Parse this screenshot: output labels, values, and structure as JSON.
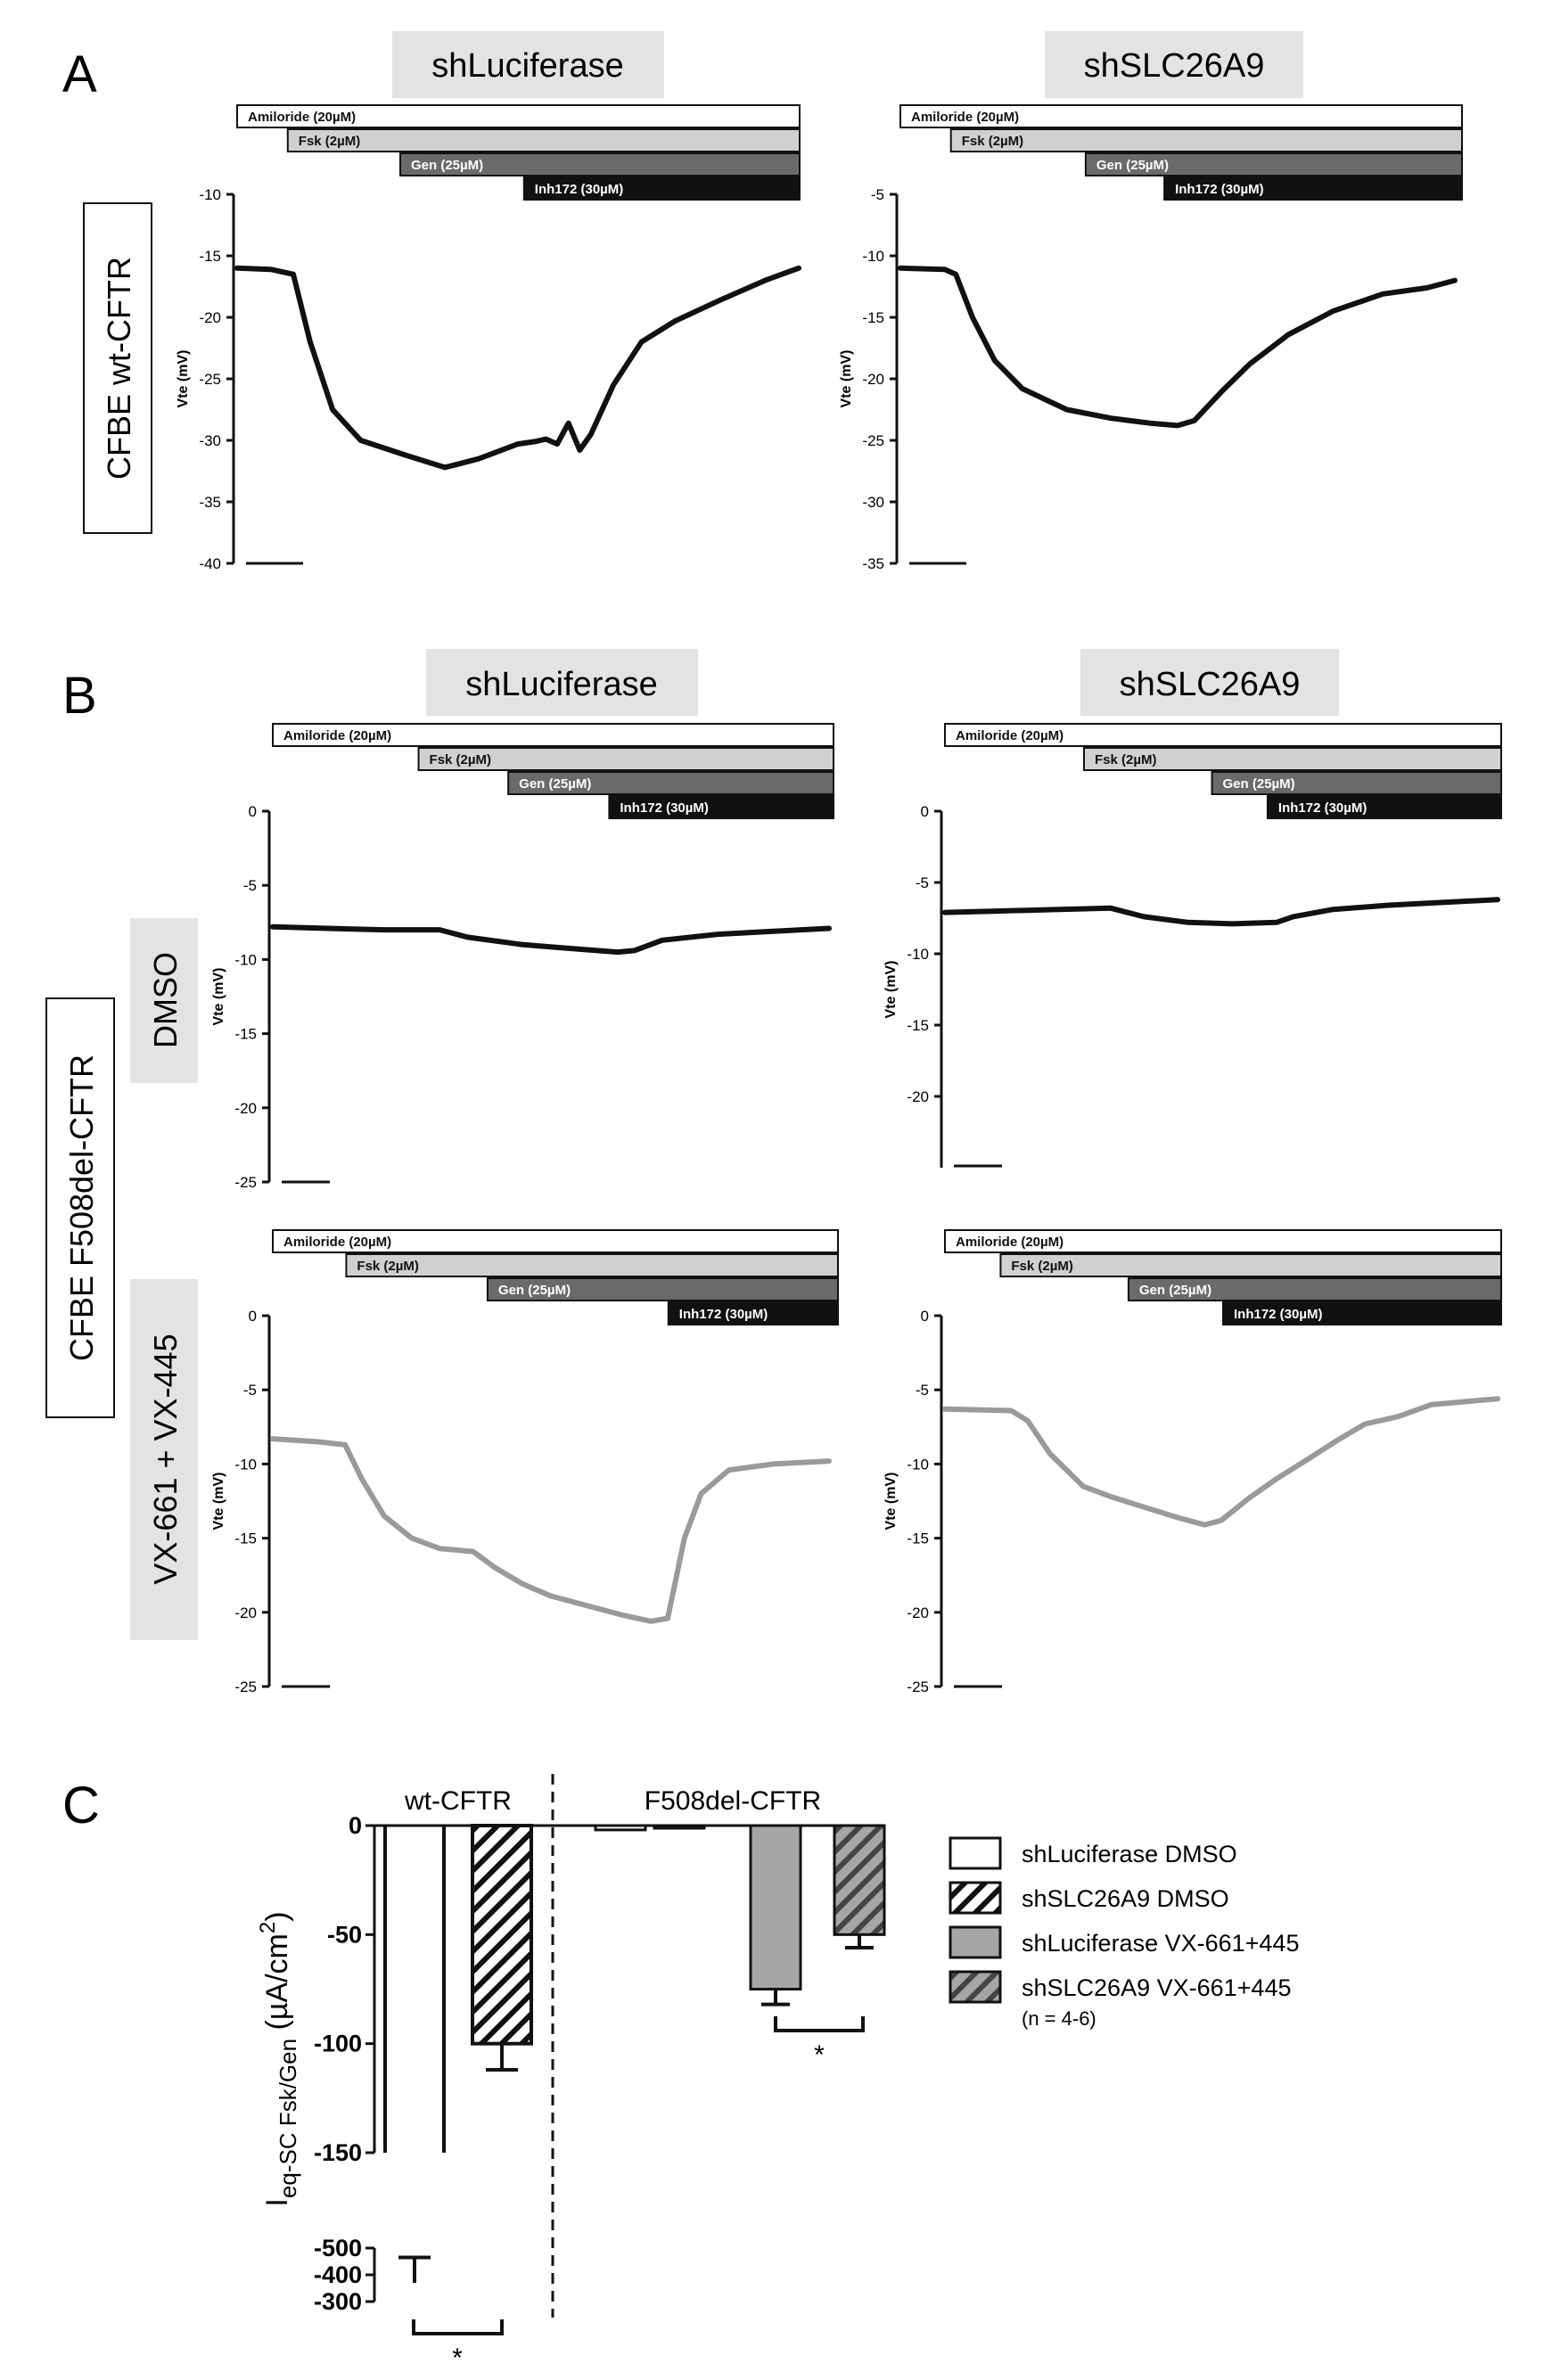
{
  "panels": {
    "A": "A",
    "B": "B",
    "C": "C"
  },
  "col_headers": [
    "shLuciferase",
    "shSLC26A9"
  ],
  "row_labels": {
    "A": "CFBE wt-CFTR",
    "B": "CFBE F508del-CFTR",
    "B_dmso": "DMSO",
    "B_vx": "VX-661 + VX-445"
  },
  "drug_labels": [
    "Amiloride (20µM)",
    "Fsk (2µM)",
    "Gen (25µM)",
    "Inh172 (30µM)"
  ],
  "colors": {
    "black": "#111111",
    "grey_trace": "#9a9a9a",
    "bar_light": "#d0d0d0",
    "bar_mid": "#6a6a6a",
    "bar_dark": "#111111",
    "header_bg": "#e3e3e3",
    "bar_grey": "#a6a6a6",
    "bar_grey_hatch": "#8a8a8a"
  },
  "chart_data": [
    {
      "type": "line",
      "id": "A1",
      "panel": "A",
      "column": "shLuciferase",
      "condition": "wt-CFTR",
      "ylabel": "Vte (mV)",
      "ylim": [
        -40,
        -10
      ],
      "yticks": [
        -10,
        -15,
        -20,
        -25,
        -30,
        -35,
        -40
      ],
      "color": "black",
      "drug_onsets": [
        0,
        0.09,
        0.29,
        0.51
      ],
      "trace": [
        [
          0,
          -16
        ],
        [
          0.06,
          -16.1
        ],
        [
          0.1,
          -16.5
        ],
        [
          0.13,
          -22
        ],
        [
          0.17,
          -27.5
        ],
        [
          0.22,
          -30
        ],
        [
          0.3,
          -31.2
        ],
        [
          0.37,
          -32.2
        ],
        [
          0.43,
          -31.5
        ],
        [
          0.5,
          -30.3
        ],
        [
          0.53,
          -30.1
        ],
        [
          0.55,
          -29.9
        ],
        [
          0.57,
          -30.3
        ],
        [
          0.59,
          -28.6
        ],
        [
          0.61,
          -30.8
        ],
        [
          0.63,
          -29.5
        ],
        [
          0.67,
          -25.5
        ],
        [
          0.72,
          -22
        ],
        [
          0.78,
          -20.3
        ],
        [
          0.86,
          -18.6
        ],
        [
          0.94,
          -17
        ],
        [
          1,
          -16
        ]
      ]
    },
    {
      "type": "line",
      "id": "A2",
      "panel": "A",
      "column": "shSLC26A9",
      "condition": "wt-CFTR",
      "ylabel": "Vte (mV)",
      "ylim": [
        -35,
        -5
      ],
      "yticks": [
        -5,
        -10,
        -15,
        -20,
        -25,
        -30,
        -35
      ],
      "color": "black",
      "drug_onsets": [
        0,
        0.09,
        0.33,
        0.47
      ],
      "trace": [
        [
          0,
          -11
        ],
        [
          0.08,
          -11.1
        ],
        [
          0.1,
          -11.5
        ],
        [
          0.13,
          -15
        ],
        [
          0.17,
          -18.5
        ],
        [
          0.22,
          -20.8
        ],
        [
          0.3,
          -22.5
        ],
        [
          0.38,
          -23.2
        ],
        [
          0.45,
          -23.6
        ],
        [
          0.5,
          -23.8
        ],
        [
          0.53,
          -23.4
        ],
        [
          0.58,
          -21
        ],
        [
          0.63,
          -18.8
        ],
        [
          0.7,
          -16.4
        ],
        [
          0.78,
          -14.5
        ],
        [
          0.87,
          -13.1
        ],
        [
          0.95,
          -12.6
        ],
        [
          1,
          -12
        ]
      ]
    },
    {
      "type": "line",
      "id": "B1",
      "panel": "B",
      "column": "shLuciferase",
      "condition": "DMSO",
      "ylabel": "Vte (mV)",
      "ylim": [
        -25,
        0
      ],
      "yticks": [
        0,
        -5,
        -10,
        -15,
        -20,
        -25
      ],
      "color": "black",
      "drug_onsets": [
        0,
        0.26,
        0.42,
        0.6
      ],
      "trace": [
        [
          0,
          -7.8
        ],
        [
          0.1,
          -7.9
        ],
        [
          0.2,
          -8
        ],
        [
          0.3,
          -8
        ],
        [
          0.35,
          -8.5
        ],
        [
          0.45,
          -9
        ],
        [
          0.55,
          -9.3
        ],
        [
          0.62,
          -9.5
        ],
        [
          0.65,
          -9.4
        ],
        [
          0.7,
          -8.7
        ],
        [
          0.8,
          -8.3
        ],
        [
          0.9,
          -8.1
        ],
        [
          1,
          -7.9
        ]
      ]
    },
    {
      "type": "line",
      "id": "B2",
      "panel": "B",
      "column": "shSLC26A9",
      "condition": "DMSO",
      "ylabel": "Vte (mV)",
      "ylim": [
        -25,
        0
      ],
      "yticks": [
        0,
        -5,
        -10,
        -15,
        -20
      ],
      "color": "black",
      "drug_onsets": [
        0,
        0.25,
        0.48,
        0.58
      ],
      "trace": [
        [
          0,
          -7.1
        ],
        [
          0.1,
          -7
        ],
        [
          0.2,
          -6.9
        ],
        [
          0.3,
          -6.8
        ],
        [
          0.36,
          -7.4
        ],
        [
          0.44,
          -7.8
        ],
        [
          0.52,
          -7.9
        ],
        [
          0.6,
          -7.8
        ],
        [
          0.63,
          -7.4
        ],
        [
          0.7,
          -6.9
        ],
        [
          0.8,
          -6.6
        ],
        [
          0.9,
          -6.4
        ],
        [
          1,
          -6.2
        ]
      ]
    },
    {
      "type": "line",
      "id": "B3",
      "panel": "B",
      "column": "shLuciferase",
      "condition": "VX-661 + VX-445",
      "ylabel": "Vte (mV)",
      "ylim": [
        -25,
        0
      ],
      "yticks": [
        0,
        -5,
        -10,
        -15,
        -20,
        -25
      ],
      "color": "grey_trace",
      "drug_onsets": [
        0,
        0.13,
        0.38,
        0.7
      ],
      "trace": [
        [
          0,
          -8.3
        ],
        [
          0.08,
          -8.5
        ],
        [
          0.13,
          -8.7
        ],
        [
          0.16,
          -11
        ],
        [
          0.2,
          -13.5
        ],
        [
          0.25,
          -15
        ],
        [
          0.3,
          -15.7
        ],
        [
          0.36,
          -15.9
        ],
        [
          0.4,
          -17
        ],
        [
          0.45,
          -18.1
        ],
        [
          0.5,
          -18.9
        ],
        [
          0.57,
          -19.6
        ],
        [
          0.63,
          -20.2
        ],
        [
          0.68,
          -20.6
        ],
        [
          0.71,
          -20.4
        ],
        [
          0.74,
          -15
        ],
        [
          0.77,
          -12
        ],
        [
          0.82,
          -10.4
        ],
        [
          0.9,
          -10
        ],
        [
          1,
          -9.8
        ]
      ]
    },
    {
      "type": "line",
      "id": "B4",
      "panel": "B",
      "column": "shSLC26A9",
      "condition": "VX-661 + VX-445",
      "ylabel": "Vte (mV)",
      "ylim": [
        -25,
        0
      ],
      "yticks": [
        0,
        -5,
        -10,
        -15,
        -20,
        -25
      ],
      "color": "grey_trace",
      "drug_onsets": [
        0,
        0.1,
        0.33,
        0.5
      ],
      "trace": [
        [
          0,
          -6.3
        ],
        [
          0.12,
          -6.4
        ],
        [
          0.15,
          -7.1
        ],
        [
          0.19,
          -9.3
        ],
        [
          0.25,
          -11.5
        ],
        [
          0.3,
          -12.2
        ],
        [
          0.36,
          -12.9
        ],
        [
          0.42,
          -13.6
        ],
        [
          0.47,
          -14.1
        ],
        [
          0.5,
          -13.8
        ],
        [
          0.55,
          -12.3
        ],
        [
          0.6,
          -11
        ],
        [
          0.66,
          -9.6
        ],
        [
          0.71,
          -8.4
        ],
        [
          0.76,
          -7.3
        ],
        [
          0.82,
          -6.8
        ],
        [
          0.88,
          -6
        ],
        [
          0.94,
          -5.8
        ],
        [
          1,
          -5.6
        ]
      ]
    },
    {
      "type": "bar",
      "id": "C",
      "ylabel_main": "I",
      "ylabel_sub": "eq-SC Fsk/Gen",
      "ylabel_unit": "(µA/cm",
      "ylabel_sup": "2",
      "ylabel_close": ")",
      "groups": [
        "wt-CFTR",
        "F508del-CFTR"
      ],
      "series": [
        {
          "name": "shLuciferase DMSO",
          "values": [
            -370,
            -2
          ],
          "errors": [
            95,
            1
          ],
          "fill": "white"
        },
        {
          "name": "shSLC26A9 DMSO",
          "values": [
            -100,
            -1
          ],
          "errors": [
            12,
            1
          ],
          "fill": "hatch_white"
        },
        {
          "name": "shLuciferase VX-661+445",
          "values": [
            null,
            -75
          ],
          "errors": [
            null,
            7
          ],
          "fill": "grey"
        },
        {
          "name": "shSLC26A9 VX-661+445",
          "values": [
            null,
            -50
          ],
          "errors": [
            null,
            6
          ],
          "fill": "hatch_grey"
        }
      ],
      "ylim_upper": [
        -150,
        0
      ],
      "yticks_upper": [
        0,
        -50,
        -100,
        -150
      ],
      "ylim_lower": [
        -500,
        -300
      ],
      "yticks_lower": [
        -300,
        -400,
        -500
      ],
      "n_note": "(n = 4-6)",
      "significance": [
        "*",
        "*"
      ]
    }
  ]
}
